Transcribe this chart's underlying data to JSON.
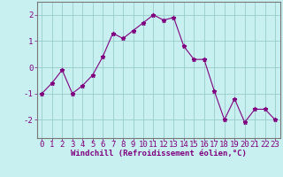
{
  "x": [
    0,
    1,
    2,
    3,
    4,
    5,
    6,
    7,
    8,
    9,
    10,
    11,
    12,
    13,
    14,
    15,
    16,
    17,
    18,
    19,
    20,
    21,
    22,
    23
  ],
  "y": [
    -1.0,
    -0.6,
    -0.1,
    -1.0,
    -0.7,
    -0.3,
    0.4,
    1.3,
    1.1,
    1.4,
    1.7,
    2.0,
    1.8,
    1.9,
    0.8,
    0.3,
    0.3,
    -0.9,
    -2.0,
    -1.2,
    -2.1,
    -1.6,
    -1.6,
    -2.0
  ],
  "line_color": "#800080",
  "marker": "*",
  "marker_size": 3.5,
  "bg_color": "#c8f0f0",
  "grid_color": "#99cccc",
  "xlabel": "Windchill (Refroidissement éolien,°C)",
  "ylim": [
    -2.7,
    2.5
  ],
  "xlim": [
    -0.5,
    23.5
  ],
  "yticks": [
    -2,
    -1,
    0,
    1,
    2
  ],
  "xtick_labels": [
    "0",
    "1",
    "2",
    "3",
    "4",
    "5",
    "6",
    "7",
    "8",
    "9",
    "10",
    "11",
    "12",
    "13",
    "14",
    "15",
    "16",
    "17",
    "18",
    "19",
    "20",
    "21",
    "22",
    "23"
  ],
  "label_color": "#800080",
  "xlabel_fontsize": 6.5,
  "tick_fontsize": 6.5,
  "spine_color": "#777777",
  "linewidth": 0.8
}
